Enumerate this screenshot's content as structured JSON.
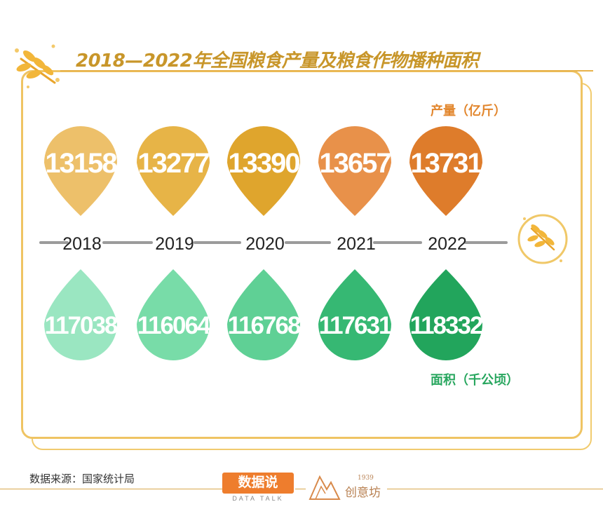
{
  "title": "2018—2022年全国粮食产量及粮食作物播种面积",
  "source": "数据来源：国家统计局",
  "brand": {
    "data_talk": "数据说",
    "data_talk_sub": "DATA TALK",
    "cyf_year": "1939",
    "cyf_name": "创意坊"
  },
  "chart_data": {
    "type": "table",
    "categories": [
      "2018",
      "2019",
      "2020",
      "2021",
      "2022"
    ],
    "series": [
      {
        "name": "产量（亿斤）",
        "values": [
          13158,
          13277,
          13390,
          13657,
          13731
        ]
      },
      {
        "name": "面积（千公顷）",
        "values": [
          117038,
          116064,
          116768,
          117631,
          118332
        ]
      }
    ]
  },
  "colors": {
    "production": [
      "#edc06a",
      "#e7b447",
      "#dfa52d",
      "#e8914a",
      "#de7c2b"
    ],
    "area": [
      "#9ae6c1",
      "#78dca8",
      "#5fd095",
      "#36b873",
      "#22a55c"
    ],
    "timeline": "#9b9b9b",
    "frame": "#efc463"
  },
  "icons": {
    "top": "wheat-icon",
    "timeline_end": "wheat-circle-icon"
  }
}
